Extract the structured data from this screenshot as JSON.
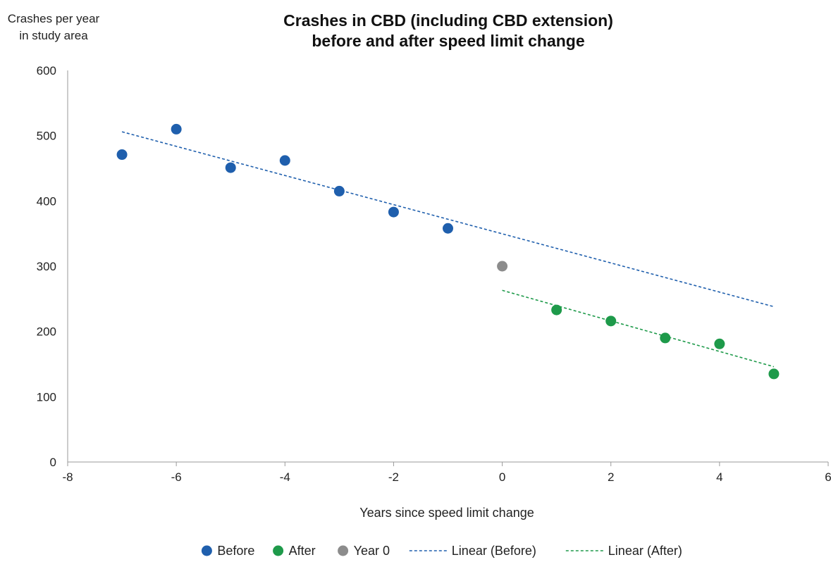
{
  "chart_data": {
    "type": "scatter",
    "title_lines": [
      "Crashes in CBD (including CBD extension)",
      "before and after speed limit change"
    ],
    "ylabel_lines": [
      "Crashes per year",
      "in study area"
    ],
    "xlabel": "Years since speed limit change",
    "xlim": [
      -8,
      6
    ],
    "ylim": [
      0,
      600
    ],
    "x_ticks": [
      -8,
      -6,
      -4,
      -2,
      0,
      2,
      4,
      6
    ],
    "y_ticks": [
      0,
      100,
      200,
      300,
      400,
      500,
      600
    ],
    "grid": false,
    "legend_position": "bottom",
    "series": [
      {
        "name": "Before",
        "color": "#1f5fad",
        "x": [
          -7,
          -6,
          -5,
          -4,
          -3,
          -2,
          -1
        ],
        "y": [
          471,
          510,
          451,
          462,
          415,
          383,
          358
        ]
      },
      {
        "name": "After",
        "color": "#1e9a4a",
        "x": [
          1,
          2,
          3,
          4,
          5
        ],
        "y": [
          233,
          216,
          190,
          181,
          135
        ]
      },
      {
        "name": "Year 0",
        "color": "#8c8c8c",
        "x": [
          0
        ],
        "y": [
          300
        ]
      }
    ],
    "trendlines": [
      {
        "name": "Linear (Before)",
        "color": "#1f5fad",
        "x": [
          -7,
          5
        ],
        "y": [
          506,
          238
        ]
      },
      {
        "name": "Linear (After)",
        "color": "#1e9a4a",
        "x": [
          0,
          5
        ],
        "y": [
          263,
          146
        ]
      }
    ]
  }
}
